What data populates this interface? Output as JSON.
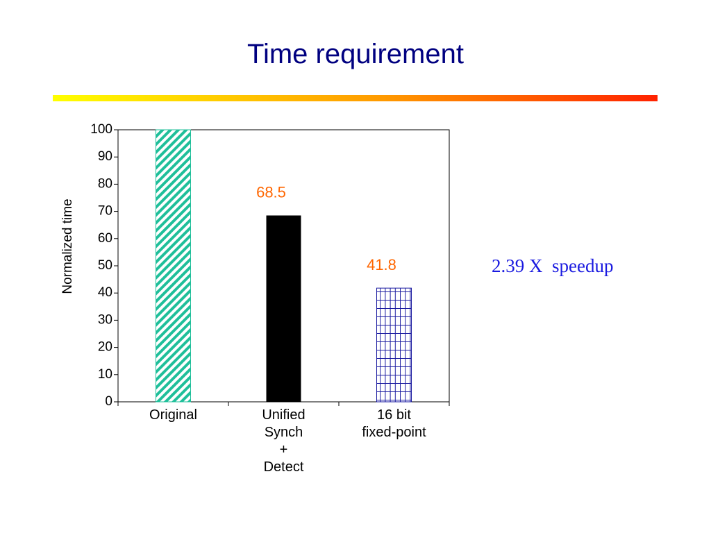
{
  "title": "Time requirement",
  "annotation": "2.39 X  speedup",
  "chart_data": {
    "type": "bar",
    "y_label": "Normalized time",
    "categories": [
      "Original",
      "Unified\nSynch\n+\nDetect",
      "16 bit\nfixed-point"
    ],
    "values": [
      100,
      68.5,
      41.8
    ],
    "show_value_labels": [
      false,
      true,
      true
    ],
    "colors": [
      "#1fbf9a",
      "#000000",
      "#1a1aa0"
    ],
    "patterns": [
      "diagonal",
      "solid",
      "grid"
    ],
    "ylim": [
      0,
      100
    ],
    "yticks": [
      0,
      10,
      20,
      30,
      40,
      50,
      60,
      70,
      80,
      90,
      100
    ],
    "grid": false
  }
}
